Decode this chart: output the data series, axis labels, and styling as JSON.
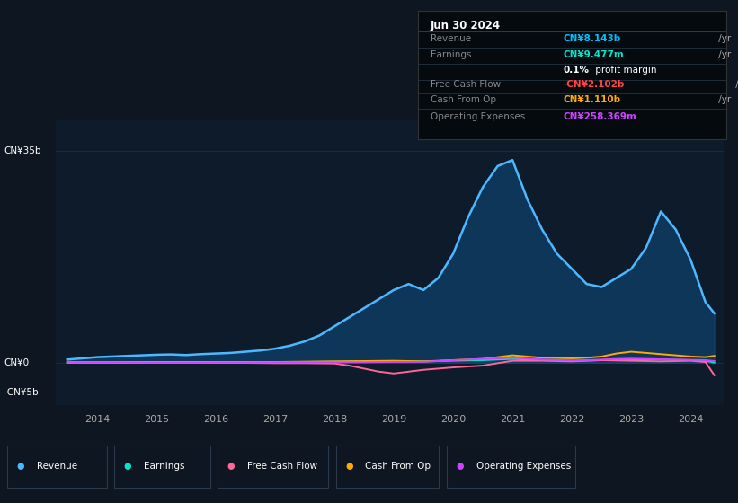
{
  "bg_color": "#0e1621",
  "chart_bg": "#0d1b2a",
  "grid_color": "#1e2d3d",
  "ylim": [
    -7000000000.0,
    40000000000.0
  ],
  "yticks": [
    35000000000.0,
    0,
    -5000000000.0
  ],
  "ytick_labels": [
    "CN¥35b",
    "CN¥0",
    "-CN¥5b"
  ],
  "info_box": {
    "date": "Jun 30 2024",
    "rows": [
      {
        "label": "Revenue",
        "value": "CN¥8.143b /yr",
        "color": "#00bfff"
      },
      {
        "label": "Earnings",
        "value": "CN¥9.477m /yr",
        "color": "#00e5cc"
      },
      {
        "label": "",
        "value": "0.1% profit margin",
        "color": "#ffffff"
      },
      {
        "label": "Free Cash Flow",
        "value": "-CN¥2.102b /yr",
        "color": "#ff4444"
      },
      {
        "label": "Cash From Op",
        "value": "CN¥1.110b /yr",
        "color": "#ffaa00"
      },
      {
        "label": "Operating Expenses",
        "value": "CN¥258.369m /yr",
        "color": "#cc44ff"
      }
    ]
  },
  "legend": [
    {
      "label": "Revenue",
      "color": "#4db8ff"
    },
    {
      "label": "Earnings",
      "color": "#00e5cc"
    },
    {
      "label": "Free Cash Flow",
      "color": "#ff6699"
    },
    {
      "label": "Cash From Op",
      "color": "#ffaa00"
    },
    {
      "label": "Operating Expenses",
      "color": "#cc44ff"
    }
  ],
  "revenue_x": [
    2013.5,
    2013.75,
    2014.0,
    2014.25,
    2014.5,
    2014.75,
    2015.0,
    2015.25,
    2015.5,
    2015.75,
    2016.0,
    2016.25,
    2016.5,
    2016.75,
    2017.0,
    2017.25,
    2017.5,
    2017.75,
    2018.0,
    2018.25,
    2018.5,
    2018.75,
    2019.0,
    2019.25,
    2019.5,
    2019.75,
    2020.0,
    2020.25,
    2020.5,
    2020.75,
    2021.0,
    2021.25,
    2021.5,
    2021.75,
    2022.0,
    2022.25,
    2022.5,
    2022.75,
    2023.0,
    2023.25,
    2023.5,
    2023.75,
    2024.0,
    2024.25,
    2024.4
  ],
  "revenue_y": [
    500000000.0,
    700000000.0,
    900000000.0,
    1000000000.0,
    1100000000.0,
    1200000000.0,
    1300000000.0,
    1350000000.0,
    1250000000.0,
    1400000000.0,
    1500000000.0,
    1600000000.0,
    1800000000.0,
    2000000000.0,
    2300000000.0,
    2800000000.0,
    3500000000.0,
    4500000000.0,
    6000000000.0,
    7500000000.0,
    9000000000.0,
    10500000000.0,
    12000000000.0,
    13000000000.0,
    12000000000.0,
    14000000000.0,
    18000000000.0,
    24000000000.0,
    29000000000.0,
    32500000000.0,
    33500000000.0,
    27000000000.0,
    22000000000.0,
    18000000000.0,
    15500000000.0,
    13000000000.0,
    12500000000.0,
    14000000000.0,
    15500000000.0,
    19000000000.0,
    25000000000.0,
    22000000000.0,
    17000000000.0,
    10000000000.0,
    8143000000.0
  ],
  "earnings_x": [
    2013.5,
    2014.0,
    2014.5,
    2015.0,
    2015.5,
    2016.0,
    2016.5,
    2017.0,
    2017.5,
    2018.0,
    2018.5,
    2019.0,
    2019.5,
    2020.0,
    2020.5,
    2021.0,
    2021.5,
    2022.0,
    2022.25,
    2022.5,
    2022.75,
    2023.0,
    2023.25,
    2023.5,
    2023.75,
    2024.0,
    2024.25,
    2024.4
  ],
  "earnings_y": [
    50000000.0,
    50000000.0,
    80000000.0,
    100000000.0,
    100000000.0,
    100000000.0,
    100000000.0,
    100000000.0,
    100000000.0,
    150000000.0,
    200000000.0,
    250000000.0,
    200000000.0,
    300000000.0,
    400000000.0,
    600000000.0,
    400000000.0,
    300000000.0,
    350000000.0,
    400000000.0,
    450000000.0,
    500000000.0,
    550000000.0,
    500000000.0,
    450000000.0,
    400000000.0,
    300000000.0,
    9477000.0
  ],
  "fcf_x": [
    2013.5,
    2014.0,
    2014.5,
    2015.0,
    2015.5,
    2016.0,
    2016.5,
    2017.0,
    2017.5,
    2018.0,
    2018.25,
    2018.5,
    2018.75,
    2019.0,
    2019.25,
    2019.5,
    2020.0,
    2020.5,
    2021.0,
    2021.5,
    2022.0,
    2022.5,
    2023.0,
    2023.5,
    2024.0,
    2024.25,
    2024.4
  ],
  "fcf_y": [
    -50000000.0,
    -50000000.0,
    -50000000.0,
    -50000000.0,
    -50000000.0,
    -50000000.0,
    -50000000.0,
    -100000000.0,
    -100000000.0,
    -150000000.0,
    -500000000.0,
    -1000000000.0,
    -1500000000.0,
    -1800000000.0,
    -1500000000.0,
    -1200000000.0,
    -800000000.0,
    -500000000.0,
    300000000.0,
    300000000.0,
    200000000.0,
    400000000.0,
    300000000.0,
    200000000.0,
    300000000.0,
    100000000.0,
    -2102000000.0
  ],
  "cashop_x": [
    2013.5,
    2014.0,
    2014.5,
    2015.0,
    2015.5,
    2016.0,
    2016.5,
    2017.0,
    2017.5,
    2018.0,
    2018.5,
    2019.0,
    2019.5,
    2020.0,
    2020.5,
    2021.0,
    2021.5,
    2022.0,
    2022.25,
    2022.5,
    2022.75,
    2023.0,
    2023.25,
    2023.5,
    2023.75,
    2024.0,
    2024.25,
    2024.4
  ],
  "cashop_y": [
    50000000.0,
    50000000.0,
    50000000.0,
    100000000.0,
    100000000.0,
    100000000.0,
    100000000.0,
    100000000.0,
    150000000.0,
    200000000.0,
    250000000.0,
    300000000.0,
    200000000.0,
    400000000.0,
    600000000.0,
    1200000000.0,
    800000000.0,
    700000000.0,
    800000000.0,
    1000000000.0,
    1500000000.0,
    1800000000.0,
    1600000000.0,
    1400000000.0,
    1200000000.0,
    1000000000.0,
    900000000.0,
    1110000000.0
  ],
  "opex_x": [
    2013.5,
    2014.0,
    2014.5,
    2015.0,
    2015.5,
    2016.0,
    2016.5,
    2017.0,
    2017.5,
    2018.0,
    2018.5,
    2019.0,
    2019.5,
    2020.0,
    2020.5,
    2021.0,
    2021.5,
    2022.0,
    2022.25,
    2022.5,
    2022.75,
    2023.0,
    2023.25,
    2023.5,
    2023.75,
    2024.0,
    2024.25,
    2024.4
  ],
  "opex_y": [
    20000000.0,
    20000000.0,
    20000000.0,
    20000000.0,
    20000000.0,
    30000000.0,
    30000000.0,
    40000000.0,
    50000000.0,
    50000000.0,
    50000000.0,
    100000000.0,
    120000000.0,
    400000000.0,
    600000000.0,
    800000000.0,
    500000000.0,
    350000000.0,
    400000000.0,
    500000000.0,
    600000000.0,
    650000000.0,
    600000000.0,
    550000000.0,
    500000000.0,
    450000000.0,
    400000000.0,
    258369000.0
  ],
  "xlim": [
    2013.3,
    2024.55
  ],
  "year_ticks": [
    2014,
    2015,
    2016,
    2017,
    2018,
    2019,
    2020,
    2021,
    2022,
    2023,
    2024
  ]
}
